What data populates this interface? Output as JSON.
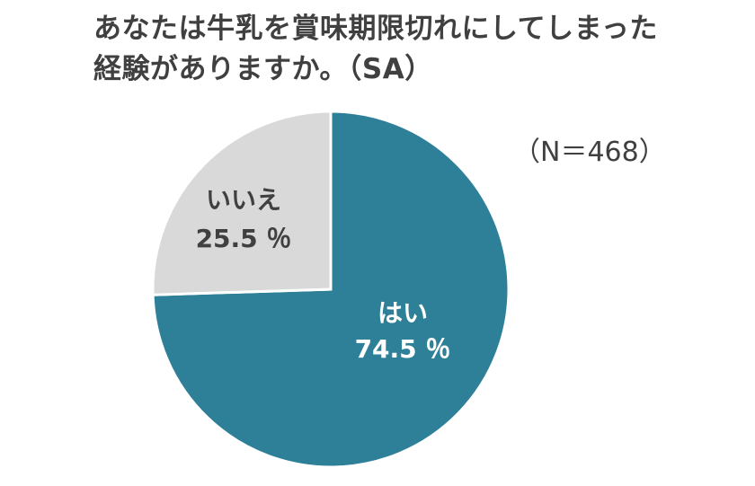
{
  "title": {
    "line1": "あなたは牛乳を賞味期限切れにしてしまった",
    "line2": "経験がありますか。（SA）"
  },
  "sample_size": "（N＝468）",
  "chart_data": {
    "type": "pie",
    "title": "あなたは牛乳を賞味期限切れにしてしまった経験がありますか。（SA）",
    "unit": "%",
    "start_angle": "12 o'clock",
    "direction": "clockwise",
    "slices": [
      {
        "label": "はい",
        "value": 74.5,
        "value_text": "74.5 ％",
        "color": "#2e8098",
        "text_color": "#ffffff"
      },
      {
        "label": "いいえ",
        "value": 25.5,
        "value_text": "25.5 ％",
        "color": "#d9d9d9",
        "text_color": "#404040"
      }
    ],
    "edge_color": "#ffffff"
  }
}
